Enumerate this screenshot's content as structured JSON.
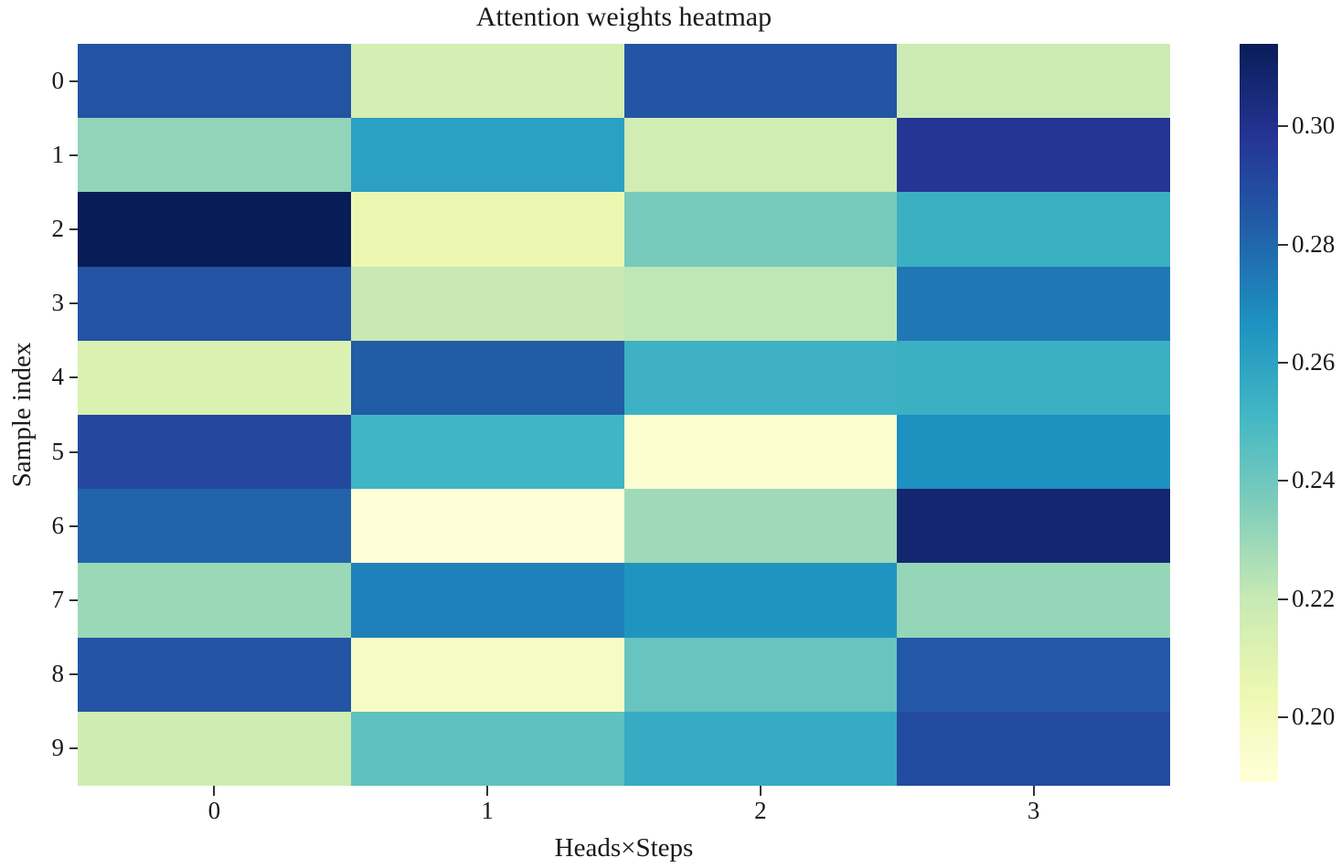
{
  "chart_data": {
    "type": "heatmap",
    "title": "Attention weights heatmap",
    "xlabel": "Heads×Steps",
    "ylabel": "Sample index",
    "x_tick_labels": [
      "0",
      "1",
      "2",
      "3"
    ],
    "y_tick_labels": [
      "0",
      "1",
      "2",
      "3",
      "4",
      "5",
      "6",
      "7",
      "8",
      "9"
    ],
    "colormap": "YlGnBu",
    "vmin": 0.189,
    "vmax": 0.314,
    "colorbar_tick_values": [
      0.3,
      0.28,
      0.26,
      0.24,
      0.22,
      0.2
    ],
    "colorbar_tick_labels": [
      "0.30",
      "0.28",
      "0.26",
      "0.24",
      "0.22",
      "0.20"
    ],
    "legend_position": "right-colorbar",
    "grid": false,
    "values": [
      [
        0.287,
        0.215,
        0.286,
        0.218
      ],
      [
        0.232,
        0.261,
        0.216,
        0.298
      ],
      [
        0.314,
        0.205,
        0.238,
        0.254
      ],
      [
        0.287,
        0.22,
        0.222,
        0.275
      ],
      [
        0.212,
        0.284,
        0.253,
        0.254
      ],
      [
        0.291,
        0.252,
        0.192,
        0.267
      ],
      [
        0.281,
        0.19,
        0.229,
        0.308
      ],
      [
        0.23,
        0.272,
        0.266,
        0.231
      ],
      [
        0.286,
        0.197,
        0.242,
        0.285
      ],
      [
        0.217,
        0.244,
        0.256,
        0.29
      ]
    ]
  }
}
